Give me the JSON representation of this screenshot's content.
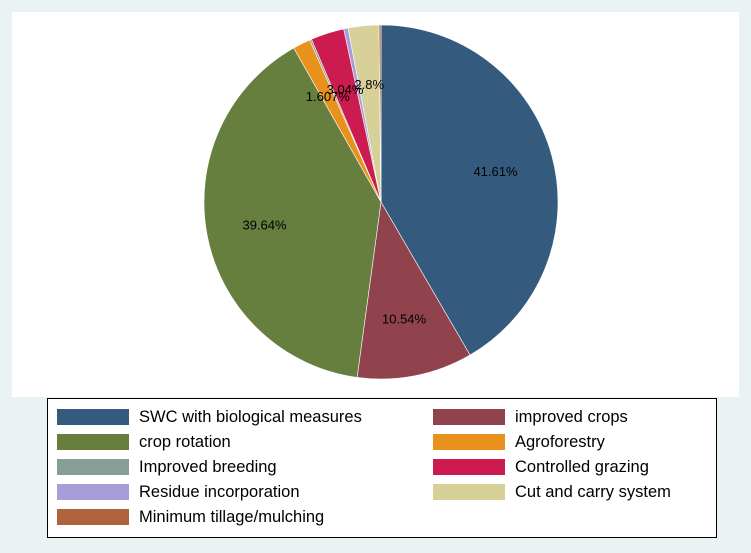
{
  "chart_data": {
    "type": "pie",
    "title": "",
    "slices": [
      {
        "name": "SWC with biological measures",
        "value": 41.61,
        "label": "41.61%",
        "color": "#345a7e"
      },
      {
        "name": "improved crops",
        "value": 10.54,
        "label": "10.54%",
        "color": "#90434d"
      },
      {
        "name": "crop rotation",
        "value": 39.64,
        "label": "39.64%",
        "color": "#667f3f"
      },
      {
        "name": "Agroforestry",
        "value": 1.6,
        "label": "1.607%",
        "color": "#e8921d"
      },
      {
        "name": "Improved breeding",
        "value": 0.18,
        "label": "",
        "color": "#859e96"
      },
      {
        "name": "Controlled grazing",
        "value": 3.04,
        "label": "3.04%",
        "color": "#cc1b4f"
      },
      {
        "name": "Residue incorporation",
        "value": 0.4,
        "label": "",
        "color": "#a89dd8"
      },
      {
        "name": "Cut and carry system",
        "value": 2.8,
        "label": "2.8%",
        "color": "#d7d099"
      },
      {
        "name": "Minimum tillage/mulching",
        "value": 0.18,
        "label": "",
        "color": "#b0623c"
      }
    ],
    "legend": {
      "placement": "bottom",
      "entries": [
        "SWC with biological measures",
        "improved crops",
        "crop rotation",
        "Agroforestry",
        "Improved breeding",
        "Controlled grazing",
        "Residue incorporation",
        "Cut and carry system",
        "Minimum tillage/mulching"
      ]
    }
  }
}
